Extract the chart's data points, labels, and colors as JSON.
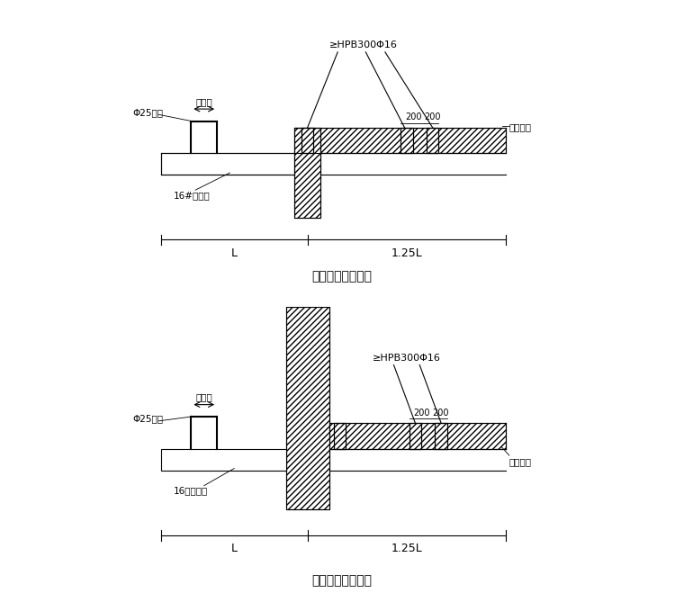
{
  "bg_color": "#ffffff",
  "fig_width": 7.6,
  "fig_height": 6.79,
  "dpi": 100,
  "diagram1": {
    "title": "悬挑钢梁楼面构造",
    "label_hpb": "≥HPB300Φ16",
    "label_phi25": "Φ25钢筋",
    "label_tongjiakuan": "同架宽",
    "label_16h": "16#工字钢",
    "label_mujian": "木楔塞紧",
    "label_L": "L",
    "label_125L": "1.25L"
  },
  "diagram2": {
    "title": "悬挑钢梁穿墙构造",
    "label_hpb": "≥HPB300Φ16",
    "label_phi25": "Φ25钢筋",
    "label_tongjiakuan": "同架宽",
    "label_16h": "16号工字钢",
    "label_mujian": "木楔塞紧",
    "label_L": "L",
    "label_125L": "1.25L"
  }
}
